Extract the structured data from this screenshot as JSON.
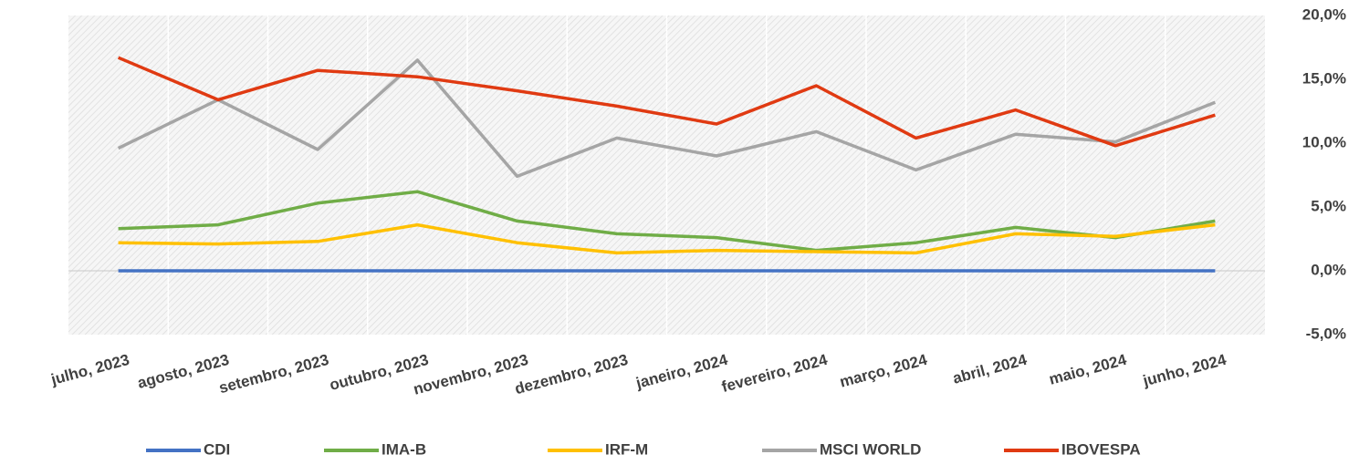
{
  "chart_data": {
    "type": "line",
    "categories": [
      "julho, 2023",
      "agosto, 2023",
      "setembro, 2023",
      "outubro, 2023",
      "novembro, 2023",
      "dezembro, 2023",
      "janeiro, 2024",
      "fevereiro, 2024",
      "março, 2024",
      "abril, 2024",
      "maio, 2024",
      "junho, 2024"
    ],
    "series": [
      {
        "name": "CDI",
        "color": "#4472c4",
        "values": [
          0,
          0,
          0,
          0,
          0,
          0,
          0,
          0,
          0,
          0,
          0,
          0
        ]
      },
      {
        "name": "IMA-B",
        "color": "#70ad47",
        "values": [
          3.3,
          3.6,
          5.3,
          6.2,
          3.9,
          2.9,
          2.6,
          1.6,
          2.2,
          3.4,
          2.6,
          3.9
        ]
      },
      {
        "name": "IRF-M",
        "color": "#ffc000",
        "values": [
          2.2,
          2.1,
          2.3,
          3.6,
          2.2,
          1.4,
          1.6,
          1.5,
          1.4,
          2.9,
          2.7,
          3.6
        ]
      },
      {
        "name": "MSCI WORLD",
        "color": "#a5a5a5",
        "values": [
          9.6,
          13.4,
          9.5,
          16.5,
          7.4,
          10.4,
          9.0,
          10.9,
          7.9,
          10.7,
          10.1,
          13.2
        ]
      },
      {
        "name": "IBOVESPA",
        "color": "#e03a12",
        "values": [
          16.7,
          13.4,
          15.7,
          15.2,
          14.1,
          12.9,
          11.5,
          14.5,
          10.4,
          12.6,
          9.8,
          12.2
        ]
      }
    ],
    "ylim": [
      -5,
      20
    ],
    "yticks": [
      {
        "value": -5,
        "label": "-5,0%"
      },
      {
        "value": 0,
        "label": "0,0%"
      },
      {
        "value": 5,
        "label": "5,0%"
      },
      {
        "value": 10,
        "label": "10,0%"
      },
      {
        "value": 15,
        "label": "15,0%"
      },
      {
        "value": 20,
        "label": "20,0%"
      }
    ],
    "grid": true,
    "legend": "bottom"
  }
}
